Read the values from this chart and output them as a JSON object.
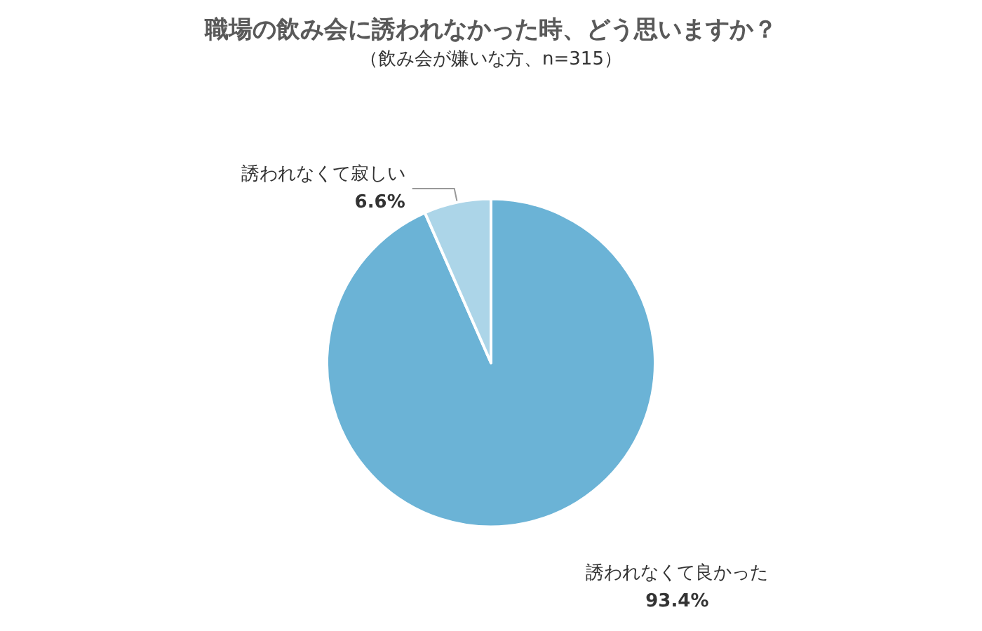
{
  "chart_data": {
    "type": "pie",
    "title": "職場の飲み会に誘われなかった時、どう思いますか？",
    "subtitle": "（飲み会が嫌いな方、n=315）",
    "categories": [
      "誘われなくて良かった",
      "誘われなくて寂しい"
    ],
    "values": [
      93.4,
      6.6
    ],
    "value_labels": [
      "93.4%",
      "6.6%"
    ],
    "colors": [
      "#6bb3d6",
      "#acd5e8"
    ],
    "legend": false
  }
}
